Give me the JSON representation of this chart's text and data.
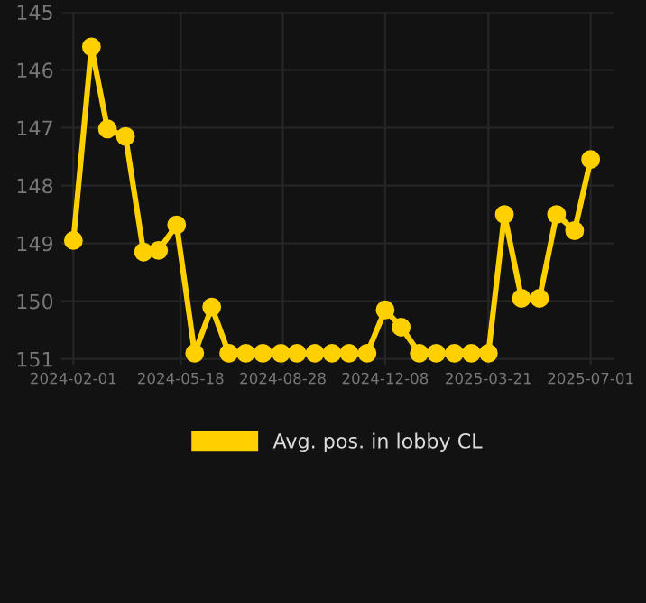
{
  "chart_data": {
    "type": "line",
    "x": [
      "2024-02-01",
      "2024-02-19",
      "2024-03-06",
      "2024-03-24",
      "2024-04-11",
      "2024-04-26",
      "2024-05-14",
      "2024-06-01",
      "2024-06-18",
      "2024-07-05",
      "2024-07-22",
      "2024-08-08",
      "2024-08-26",
      "2024-09-11",
      "2024-09-29",
      "2024-10-16",
      "2024-11-02",
      "2024-11-20",
      "2024-12-08",
      "2024-12-24",
      "2025-01-11",
      "2025-01-28",
      "2025-02-15",
      "2025-03-04",
      "2025-03-21",
      "2025-04-06",
      "2025-04-23",
      "2025-05-11",
      "2025-05-28",
      "2025-06-15",
      "2025-07-01"
    ],
    "series": [
      {
        "name": "Avg. pos. in lobby CL",
        "color": "#ffd000",
        "values": [
          148.95,
          145.6,
          147.02,
          147.15,
          149.15,
          149.12,
          148.68,
          150.9,
          150.1,
          150.9,
          150.9,
          150.9,
          150.9,
          150.9,
          150.9,
          150.9,
          150.9,
          150.9,
          150.15,
          150.45,
          150.9,
          150.9,
          150.9,
          150.9,
          150.9,
          148.5,
          149.95,
          149.95,
          148.5,
          148.78,
          147.55
        ]
      }
    ],
    "xlim": [
      "2024-01-20",
      "2025-07-24"
    ],
    "xticks": [
      "2024-02-01",
      "2024-05-18",
      "2024-08-28",
      "2024-12-08",
      "2025-03-21",
      "2025-07-01"
    ],
    "ylim": [
      151.1,
      145
    ],
    "yticks": [
      145,
      146,
      147,
      148,
      149,
      150,
      151
    ],
    "grid": true,
    "legend": "bottom",
    "marker": "circle",
    "line_style": "solid"
  }
}
